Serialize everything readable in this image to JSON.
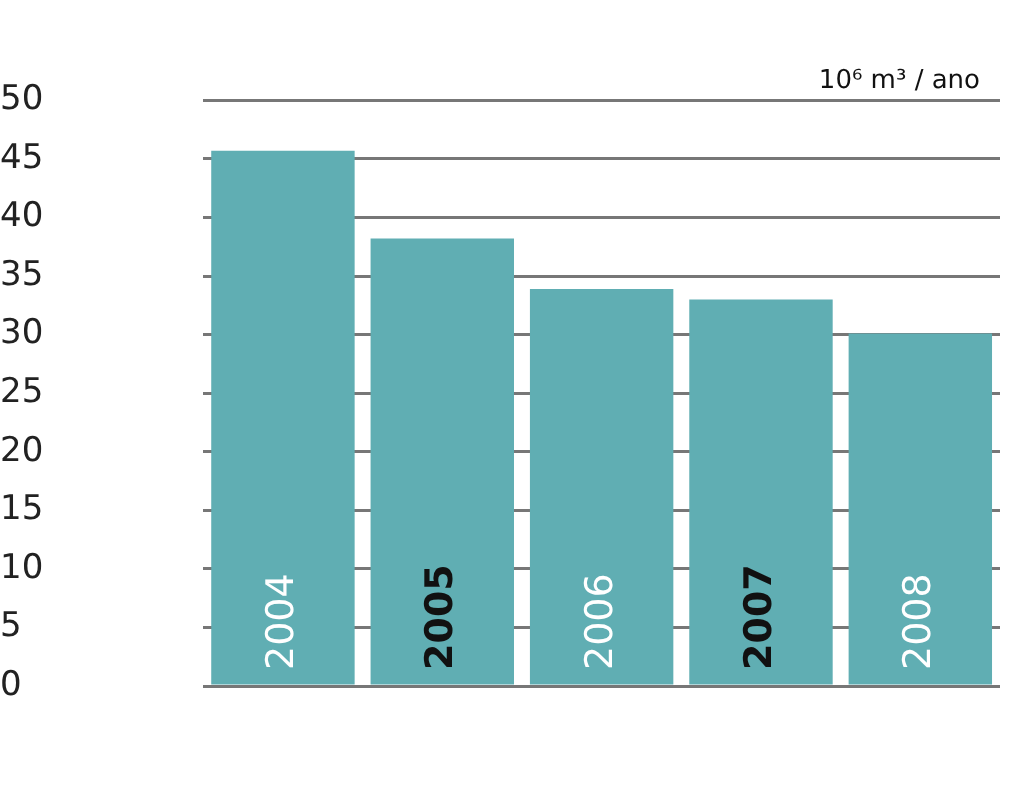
{
  "chart_data": {
    "type": "bar",
    "ylabel": "10⁶ m³ / ano",
    "categories": [
      "2004",
      "2005",
      "2006",
      "2007",
      "2008"
    ],
    "values": [
      45.7,
      38.2,
      33.9,
      33.0,
      30.1
    ],
    "color": "#60aeb3",
    "ylim": [
      0,
      50
    ],
    "yticks": [
      0,
      5,
      10,
      15,
      20,
      25,
      30,
      35,
      40,
      45,
      50
    ],
    "grid": "y",
    "legend": false
  }
}
